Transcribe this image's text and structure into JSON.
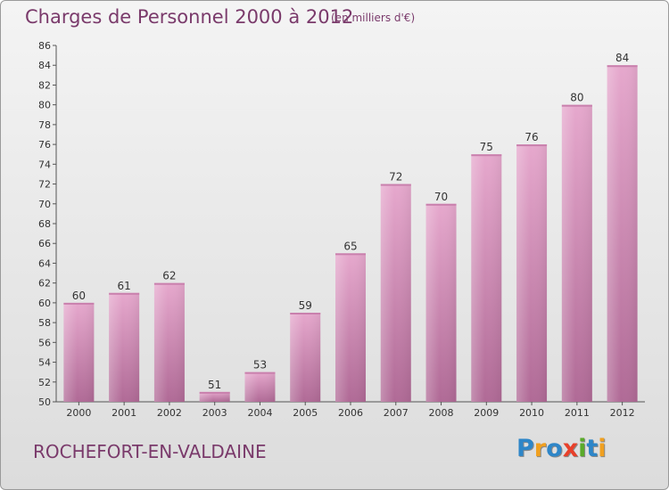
{
  "title": "Charges de Personnel 2000 à 2012",
  "subtitle": "(en milliers d'€)",
  "place": "ROCHEFORT-EN-VALDAINE",
  "logo": {
    "text": "Proxiti",
    "letters": [
      {
        "char": "P",
        "color": "#2e86c8"
      },
      {
        "char": "r",
        "color": "#f0a020"
      },
      {
        "char": "o",
        "color": "#2e86c8"
      },
      {
        "char": "x",
        "color": "#e8402a"
      },
      {
        "char": "i",
        "color": "#5aaa2a"
      },
      {
        "char": "t",
        "color": "#2e86c8"
      },
      {
        "char": "i",
        "color": "#f0a020"
      }
    ]
  },
  "colors": {
    "bar_top": "#e6a8cd",
    "bar_bottom": "#b06a96",
    "text": "#333333",
    "title": "#7a3a6b"
  },
  "chart_data": {
    "type": "bar",
    "categories": [
      "2000",
      "2001",
      "2002",
      "2003",
      "2004",
      "2005",
      "2006",
      "2007",
      "2008",
      "2009",
      "2010",
      "2011",
      "2012"
    ],
    "values": [
      60,
      61,
      62,
      51,
      53,
      59,
      65,
      72,
      70,
      75,
      76,
      80,
      84
    ],
    "title": "Charges de Personnel 2000 à 2012",
    "xlabel": "",
    "ylabel": "",
    "ylim": [
      50,
      86
    ],
    "yticks": [
      50,
      52,
      54,
      56,
      58,
      60,
      62,
      64,
      66,
      68,
      70,
      72,
      74,
      76,
      78,
      80,
      82,
      84,
      86
    ],
    "grid": false,
    "data_labels": true
  }
}
